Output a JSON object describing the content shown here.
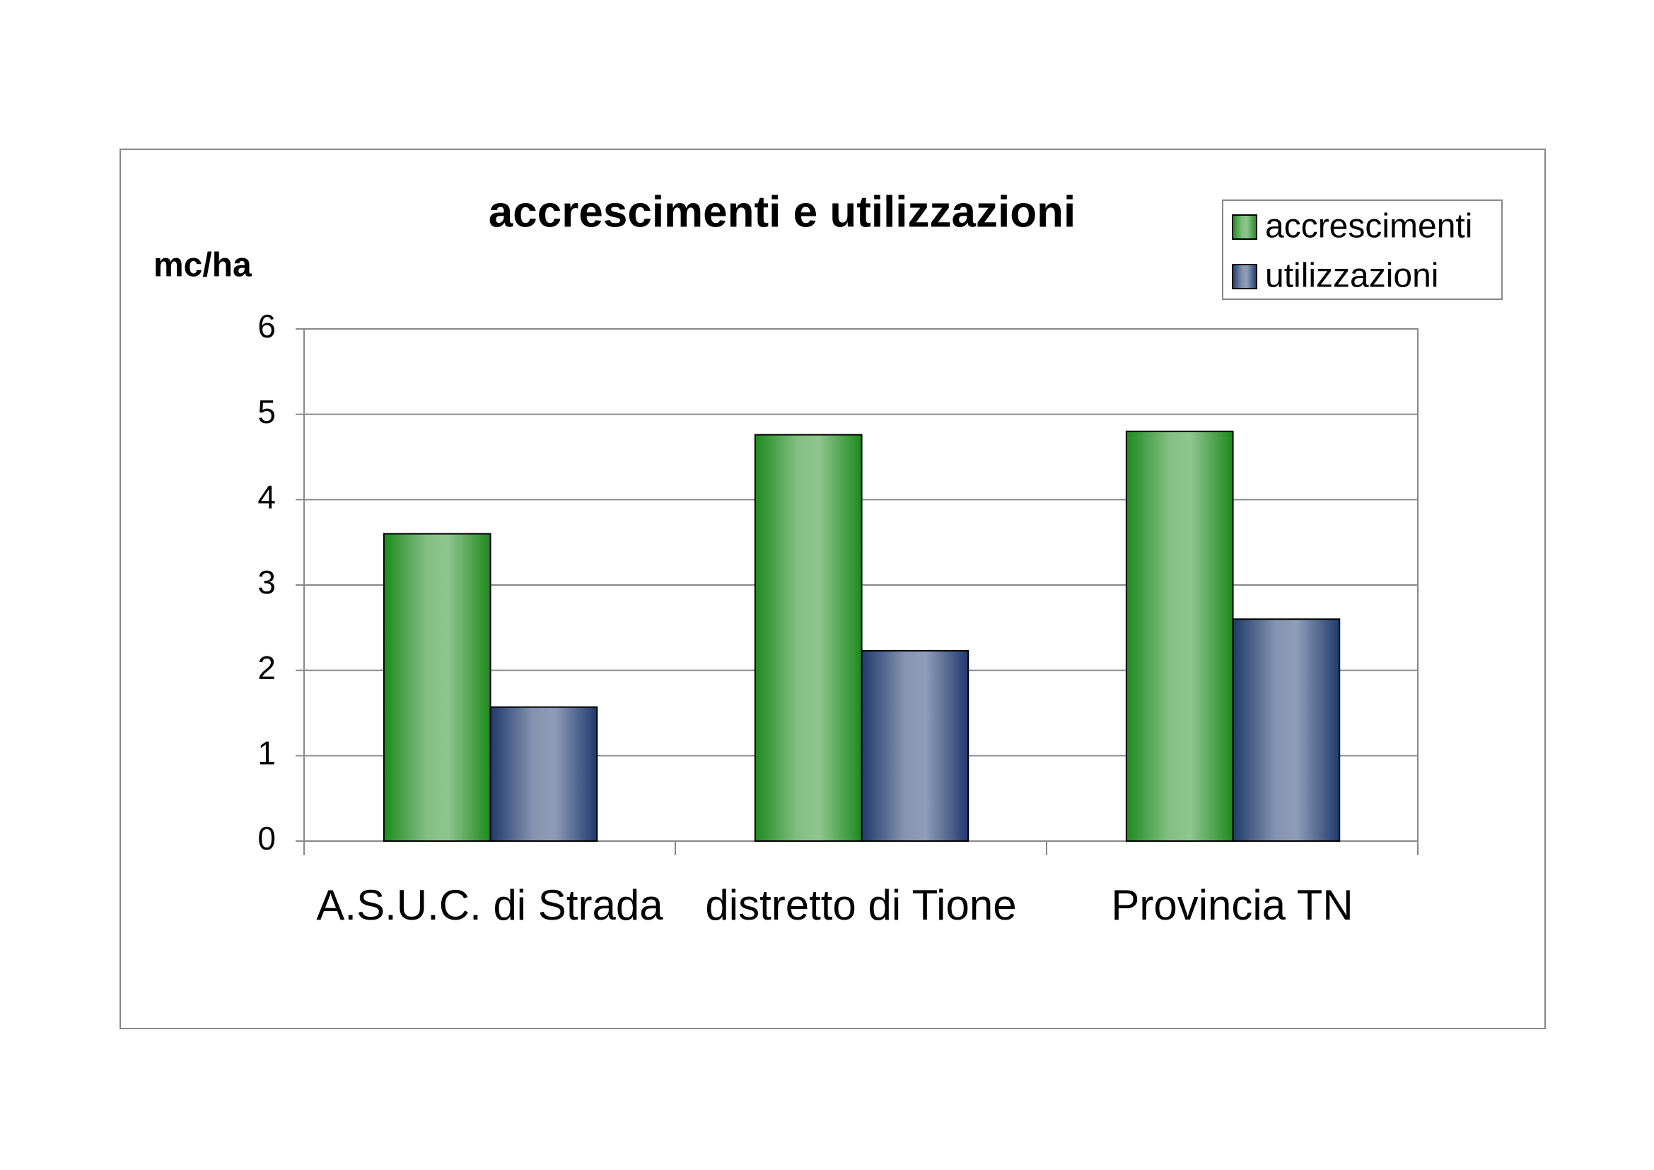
{
  "chart_data": {
    "type": "bar",
    "title": "accrescimenti e utilizzazioni",
    "y_label": "mc/ha",
    "categories": [
      "A.S.U.C. di Strada",
      "distretto di Tione",
      "Provincia TN"
    ],
    "series": [
      {
        "name": "accrescimenti",
        "color": "#1e8a1e",
        "values": [
          3.6,
          4.76,
          4.8
        ]
      },
      {
        "name": "utilizzazioni",
        "color": "#1f3a6e",
        "values": [
          1.57,
          2.23,
          2.6
        ]
      }
    ],
    "ylim": [
      0,
      6
    ],
    "yticks": [
      0,
      1,
      2,
      3,
      4,
      5,
      6
    ],
    "grid": true,
    "legend": "top-right"
  }
}
